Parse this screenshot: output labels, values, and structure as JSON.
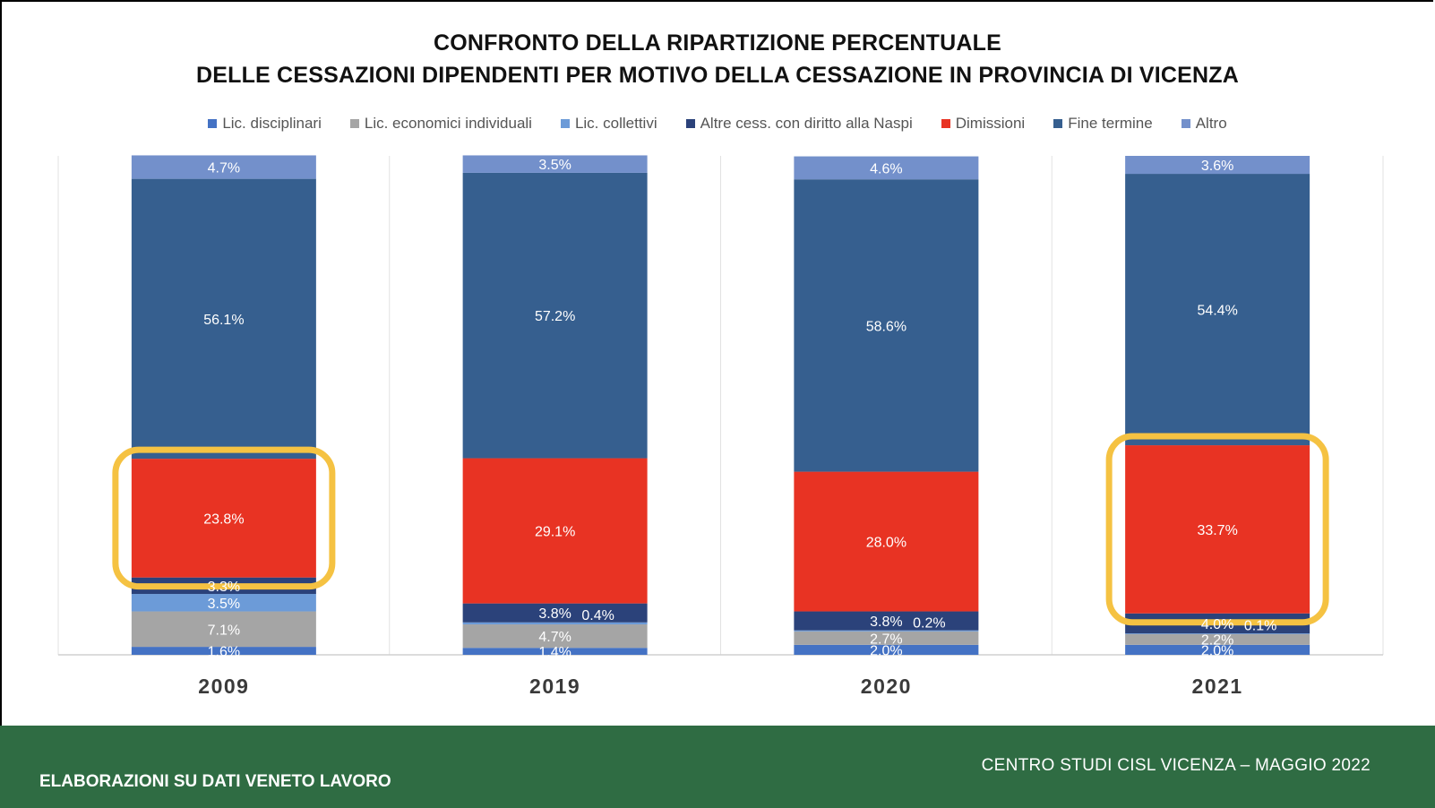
{
  "chart_data": {
    "type": "bar",
    "stacked": true,
    "title": "CONFRONTO DELLA RIPARTIZIONE PERCENTUALE",
    "subtitle": "DELLE CESSAZIONI DIPENDENTI PER MOTIVO DELLA CESSAZIONE IN PROVINCIA DI VICENZA",
    "xlabel": "",
    "ylabel": "",
    "ylim": [
      0,
      100
    ],
    "grid": false,
    "legend_position": "top",
    "categories": [
      "2009",
      "2019",
      "2020",
      "2021"
    ],
    "series": [
      {
        "name": "Lic. disciplinari",
        "color": "#4472c4",
        "values": [
          1.6,
          1.4,
          2.0,
          2.0
        ],
        "labels": [
          "1.6%",
          "1.4%",
          "2.0%",
          "2.0%"
        ]
      },
      {
        "name": "Lic. economici individuali",
        "color": "#a5a5a5",
        "values": [
          7.1,
          4.7,
          2.7,
          2.2
        ],
        "labels": [
          "7.1%",
          "4.7%",
          "2.7%",
          "2.2%"
        ]
      },
      {
        "name": "Lic. collettivi",
        "color": "#6c9bd8",
        "values": [
          3.5,
          0.4,
          0.2,
          0.1
        ],
        "labels": [
          "3.5%",
          "0.4%",
          "0.2%",
          "0.1%"
        ]
      },
      {
        "name": "Altre cess. con diritto alla Naspi",
        "color": "#2b427a",
        "values": [
          3.3,
          3.8,
          3.8,
          4.0
        ],
        "labels": [
          "3.3%",
          "3.8%",
          "3.8%",
          "4.0%"
        ]
      },
      {
        "name": "Dimissioni",
        "color": "#e83323",
        "values": [
          23.8,
          29.1,
          28.0,
          33.7
        ],
        "labels": [
          "23.8%",
          "29.1%",
          "28.0%",
          "33.7%"
        ]
      },
      {
        "name": "Fine termine",
        "color": "#365f8f",
        "values": [
          56.1,
          57.2,
          58.6,
          54.4
        ],
        "labels": [
          "56.1%",
          "57.2%",
          "58.6%",
          "54.4%"
        ]
      },
      {
        "name": "Altro",
        "color": "#7390cb",
        "values": [
          4.7,
          3.5,
          4.6,
          3.6
        ],
        "labels": [
          "4.7%",
          "3.5%",
          "4.6%",
          "3.6%"
        ]
      }
    ],
    "highlighted_segments": [
      {
        "category": "2009",
        "series": "Dimissioni",
        "color": "#f5c242"
      },
      {
        "category": "2021",
        "series": "Dimissioni",
        "color": "#f5c242"
      }
    ]
  },
  "footer": {
    "left": "ELABORAZIONI SU DATI VENETO LAVORO",
    "right": "CENTRO STUDI CISL VICENZA – MAGGIO 2022"
  }
}
